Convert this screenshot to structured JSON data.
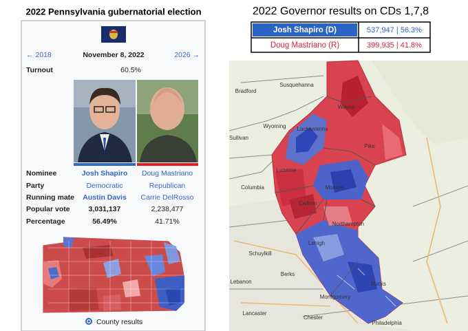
{
  "infobox": {
    "title": "2022 Pennsylvania gubernatorial election",
    "previous": "← 2018",
    "date": "November 8, 2022",
    "next": "2026 →",
    "turnout_label": "Turnout",
    "turnout": "60.5%",
    "rows": [
      [
        "Nominee",
        "Josh Shapiro",
        "Doug Mastriano"
      ],
      [
        "Party",
        "Democratic",
        "Republican"
      ],
      [
        "Running mate",
        "Austin Davis",
        "Carrie DelRosso"
      ],
      [
        "Popular vote",
        "3,031,137",
        "2,238,477"
      ],
      [
        "Percentage",
        "56.49%",
        "41.71%"
      ]
    ],
    "map_caption": "County results"
  },
  "results": {
    "title": "2022 Governor results on CDs 1,7,8",
    "rows": [
      [
        "Josh Shapiro (D)",
        "537,947 | 56.3%"
      ],
      [
        "Doug Mastriano (R)",
        "399,935 | 41.8%"
      ]
    ]
  },
  "map": {
    "labels": [
      "Bradford",
      "Susquehanna",
      "Wayne",
      "Wyoming",
      "Lackawanna",
      "Sullivan",
      "Pike",
      "Luzerne",
      "Monroe",
      "Columbia",
      "Carbon",
      "Northampton",
      "Schuylkill",
      "Lehigh",
      "Berks",
      "Bucks",
      "Lebanon",
      "Montgomery",
      "Lancaster",
      "Chester",
      "Philadelphia"
    ]
  }
}
